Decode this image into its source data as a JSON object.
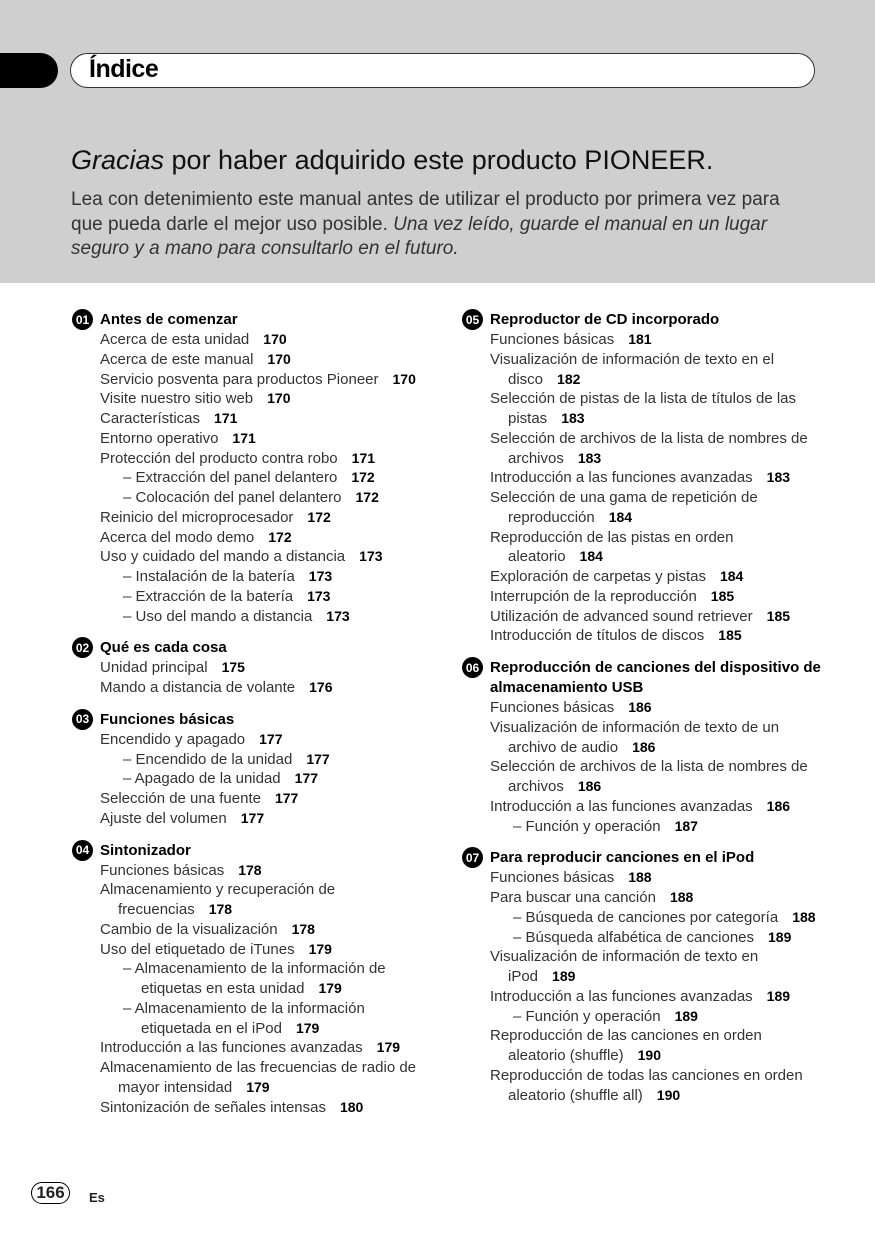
{
  "header": {
    "title": "Índice",
    "headline_italic": "Gracias",
    "headline_rest": " por haber adquirido este producto PIONEER.",
    "intro_plain": "Lea con detenimiento este manual antes de utilizar el producto por primera vez para que pueda darle el mejor uso posible. ",
    "intro_italic": "Una vez leído, guarde el manual en un lugar seguro y a mano para consultarlo en el futuro."
  },
  "sections": [
    {
      "num": "01",
      "title": "Antes de comenzar",
      "items": [
        {
          "t": "Acerca de esta unidad",
          "p": "170"
        },
        {
          "t": "Acerca de este manual",
          "p": "170"
        },
        {
          "t": "Servicio posventa para productos Pioneer",
          "p": "170"
        },
        {
          "t": "Visite nuestro sitio web",
          "p": "170"
        },
        {
          "t": "Características",
          "p": "171"
        },
        {
          "t": "Entorno operativo",
          "p": "171"
        },
        {
          "t": "Protección del producto contra robo",
          "p": "171"
        },
        {
          "t": "– Extracción del panel delantero",
          "p": "172",
          "sub": true
        },
        {
          "t": "– Colocación del panel delantero",
          "p": "172",
          "sub": true
        },
        {
          "t": "Reinicio del microprocesador",
          "p": "172"
        },
        {
          "t": "Acerca del modo demo",
          "p": "172"
        },
        {
          "t": "Uso y cuidado del mando a distancia",
          "p": "173"
        },
        {
          "t": "– Instalación de la batería",
          "p": "173",
          "sub": true
        },
        {
          "t": "– Extracción de la batería",
          "p": "173",
          "sub": true
        },
        {
          "t": "– Uso del mando a distancia",
          "p": "173",
          "sub": true
        }
      ]
    },
    {
      "num": "02",
      "title": "Qué es cada cosa",
      "items": [
        {
          "t": "Unidad principal",
          "p": "175"
        },
        {
          "t": "Mando a distancia de volante",
          "p": "176"
        }
      ]
    },
    {
      "num": "03",
      "title": "Funciones básicas",
      "items": [
        {
          "t": "Encendido y apagado",
          "p": "177"
        },
        {
          "t": "– Encendido de la unidad",
          "p": "177",
          "sub": true
        },
        {
          "t": "– Apagado de la unidad",
          "p": "177",
          "sub": true
        },
        {
          "t": "Selección de una fuente",
          "p": "177"
        },
        {
          "t": "Ajuste del volumen",
          "p": "177"
        }
      ]
    },
    {
      "num": "04",
      "title": "Sintonizador",
      "items": [
        {
          "t": "Funciones básicas",
          "p": "178"
        },
        {
          "t": "Almacenamiento y recuperación de frecuencias",
          "p": "178"
        },
        {
          "t": "Cambio de la visualización",
          "p": "178"
        },
        {
          "t": "Uso del etiquetado de iTunes",
          "p": "179"
        },
        {
          "t": "– Almacenamiento de la información de etiquetas en esta unidad",
          "p": "179",
          "sub": true
        },
        {
          "t": "– Almacenamiento de la información etiquetada en el iPod",
          "p": "179",
          "sub": true
        },
        {
          "t": "Introducción a las funciones avanzadas",
          "p": "179"
        },
        {
          "t": "Almacenamiento de las frecuencias de radio de mayor intensidad",
          "p": "179"
        },
        {
          "t": "Sintonización de señales intensas",
          "p": "180"
        }
      ]
    },
    {
      "num": "05",
      "title": "Reproductor de CD incorporado",
      "items": [
        {
          "t": "Funciones básicas",
          "p": "181"
        },
        {
          "t": "Visualización de información de texto en el disco",
          "p": "182"
        },
        {
          "t": "Selección de pistas de la lista de títulos de las pistas",
          "p": "183"
        },
        {
          "t": "Selección de archivos de la lista de nombres de archivos",
          "p": "183"
        },
        {
          "t": "Introducción a las funciones avanzadas",
          "p": "183"
        },
        {
          "t": "Selección de una gama de repetición de reproducción",
          "p": "184"
        },
        {
          "t": "Reproducción de las pistas en orden aleatorio",
          "p": "184"
        },
        {
          "t": "Exploración de carpetas y pistas",
          "p": "184"
        },
        {
          "t": "Interrupción de la reproducción",
          "p": "185"
        },
        {
          "t": "Utilización de advanced sound retriever",
          "p": "185"
        },
        {
          "t": "Introducción de títulos de discos",
          "p": "185"
        }
      ]
    },
    {
      "num": "06",
      "title": "Reproducción de canciones del dispositivo de almacenamiento USB",
      "items": [
        {
          "t": "Funciones básicas",
          "p": "186"
        },
        {
          "t": "Visualización de información de texto de un archivo de audio",
          "p": "186"
        },
        {
          "t": "Selección de archivos de la lista de nombres de archivos",
          "p": "186"
        },
        {
          "t": "Introducción a las funciones avanzadas",
          "p": "186"
        },
        {
          "t": "– Función y operación",
          "p": "187",
          "sub": true
        }
      ]
    },
    {
      "num": "07",
      "title": "Para reproducir canciones en el iPod",
      "items": [
        {
          "t": "Funciones básicas",
          "p": "188"
        },
        {
          "t": "Para buscar una canción",
          "p": "188"
        },
        {
          "t": "– Búsqueda de canciones por categoría",
          "p": "188",
          "sub": true
        },
        {
          "t": "– Búsqueda alfabética de canciones",
          "p": "189",
          "sub": true
        },
        {
          "t": "Visualización de información de texto en iPod",
          "p": "189"
        },
        {
          "t": "Introducción a las funciones avanzadas",
          "p": "189"
        },
        {
          "t": "– Función y operación",
          "p": "189",
          "sub": true
        },
        {
          "t": "Reproducción de las canciones en orden aleatorio (shuffle)",
          "p": "190"
        },
        {
          "t": "Reproducción de todas las canciones en orden aleatorio (shuffle all)",
          "p": "190"
        }
      ]
    }
  ],
  "footer": {
    "page": "166",
    "lang": "Es"
  }
}
